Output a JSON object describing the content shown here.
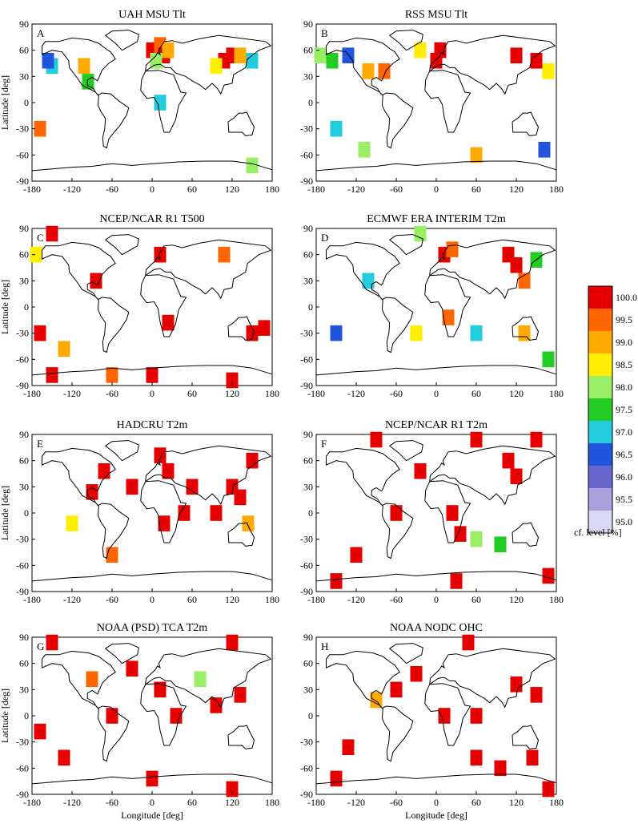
{
  "figure": {
    "ylabel": "Latitude [deg]",
    "xlabel": "Longitude [deg]",
    "x_ticks": [
      "-180",
      "-120",
      "-60",
      "0",
      "60",
      "120",
      "180"
    ],
    "y_ticks": [
      "90",
      "60",
      "30",
      "0",
      "-30",
      "-60",
      "-90"
    ]
  },
  "colorbar": {
    "ticks": [
      "100.0",
      "99.5",
      "99.0",
      "98.5",
      "98.0",
      "97.5",
      "97.0",
      "96.5",
      "96.0",
      "95.5",
      "95.0"
    ],
    "label": "cf. level [%]",
    "colors": [
      "#e60000",
      "#ff6600",
      "#ffaa00",
      "#ffee00",
      "#99ee66",
      "#22cc22",
      "#22ccdd",
      "#2255dd",
      "#6666cc",
      "#aaa0dd",
      "#d8d8f4"
    ]
  },
  "chart_data": [
    {
      "type": "heatmap",
      "panel": "A",
      "title": "UAH MSU Tlt",
      "xlim": [
        -180,
        180
      ],
      "ylim": [
        -90,
        90
      ],
      "value_unit": "%",
      "cells": [
        [
          0,
          60,
          100
        ],
        [
          12,
          66,
          99.5
        ],
        [
          18,
          54,
          100
        ],
        [
          24,
          60,
          99.2
        ],
        [
          6,
          48,
          98
        ],
        [
          -102,
          42,
          99
        ],
        [
          -150,
          42,
          97
        ],
        [
          -156,
          48,
          96.5
        ],
        [
          108,
          48,
          100
        ],
        [
          120,
          54,
          99.8
        ],
        [
          132,
          54,
          99.2
        ],
        [
          150,
          48,
          97
        ],
        [
          96,
          42,
          98.5
        ],
        [
          -96,
          24,
          97.5
        ],
        [
          -168,
          -30,
          99.5
        ],
        [
          12,
          0,
          97
        ],
        [
          150,
          -72,
          98
        ]
      ]
    },
    {
      "type": "heatmap",
      "panel": "B",
      "title": "RSS MSU Tlt",
      "xlim": [
        -180,
        180
      ],
      "ylim": [
        -90,
        90
      ],
      "value_unit": "%",
      "cells": [
        [
          -174,
          54,
          98
        ],
        [
          -156,
          48,
          97.5
        ],
        [
          -132,
          54,
          96.5
        ],
        [
          -102,
          36,
          99
        ],
        [
          -78,
          36,
          99.5
        ],
        [
          0,
          48,
          100
        ],
        [
          6,
          60,
          99.8
        ],
        [
          -24,
          60,
          98.5
        ],
        [
          120,
          54,
          100
        ],
        [
          150,
          48,
          99.8
        ],
        [
          168,
          36,
          98.5
        ],
        [
          -108,
          -54,
          98
        ],
        [
          -150,
          -30,
          97
        ],
        [
          60,
          -60,
          99.2
        ],
        [
          162,
          -54,
          96.5
        ]
      ]
    },
    {
      "type": "heatmap",
      "panel": "C",
      "title": "NCEP/NCAR R1 T500",
      "xlim": [
        -180,
        180
      ],
      "ylim": [
        -90,
        90
      ],
      "value_unit": "%",
      "cells": [
        [
          -150,
          84,
          100
        ],
        [
          -84,
          30,
          100
        ],
        [
          12,
          60,
          99.8
        ],
        [
          -174,
          60,
          98.5
        ],
        [
          108,
          60,
          99.5
        ],
        [
          150,
          -30,
          100
        ],
        [
          168,
          -24,
          100
        ],
        [
          -168,
          -30,
          100
        ],
        [
          24,
          -18,
          100
        ],
        [
          -132,
          -48,
          99
        ],
        [
          -150,
          -78,
          100
        ],
        [
          0,
          -78,
          100
        ],
        [
          120,
          -84,
          100
        ],
        [
          -60,
          -78,
          99.5
        ]
      ]
    },
    {
      "type": "heatmap",
      "panel": "D",
      "title": "ECMWF ERA INTERIM T2m",
      "xlim": [
        -180,
        180
      ],
      "ylim": [
        -90,
        90
      ],
      "value_unit": "%",
      "cells": [
        [
          12,
          60,
          100
        ],
        [
          24,
          66,
          99.5
        ],
        [
          108,
          60,
          100
        ],
        [
          120,
          48,
          100
        ],
        [
          132,
          30,
          99.5
        ],
        [
          150,
          54,
          97.5
        ],
        [
          -24,
          84,
          98
        ],
        [
          -102,
          30,
          97
        ],
        [
          18,
          -12,
          99.5
        ],
        [
          60,
          -30,
          97
        ],
        [
          -150,
          -30,
          96.5
        ],
        [
          132,
          -30,
          99
        ],
        [
          168,
          -60,
          97.5
        ],
        [
          -30,
          -30,
          98.5
        ]
      ]
    },
    {
      "type": "heatmap",
      "panel": "E",
      "title": "HADCRU T2m",
      "xlim": [
        -180,
        180
      ],
      "ylim": [
        -90,
        90
      ],
      "value_unit": "%",
      "cells": [
        [
          12,
          66,
          100
        ],
        [
          24,
          48,
          100
        ],
        [
          -72,
          48,
          100
        ],
        [
          -90,
          24,
          100
        ],
        [
          60,
          30,
          100
        ],
        [
          120,
          30,
          100
        ],
        [
          132,
          18,
          100
        ],
        [
          -30,
          30,
          100
        ],
        [
          96,
          0,
          100
        ],
        [
          48,
          0,
          100
        ],
        [
          -120,
          -12,
          98.5
        ],
        [
          144,
          -12,
          99
        ],
        [
          -60,
          -48,
          99.5
        ],
        [
          18,
          -12,
          100
        ],
        [
          150,
          60,
          100
        ]
      ]
    },
    {
      "type": "heatmap",
      "panel": "F",
      "title": "NCEP/NCAR R1 T2m",
      "xlim": [
        -180,
        180
      ],
      "ylim": [
        -90,
        90
      ],
      "value_unit": "%",
      "cells": [
        [
          -90,
          84,
          100
        ],
        [
          60,
          84,
          100
        ],
        [
          150,
          84,
          100
        ],
        [
          -24,
          48,
          100
        ],
        [
          120,
          42,
          100
        ],
        [
          108,
          60,
          100
        ],
        [
          24,
          0,
          100
        ],
        [
          -60,
          0,
          100
        ],
        [
          36,
          -24,
          100
        ],
        [
          60,
          -30,
          98
        ],
        [
          -150,
          -78,
          100
        ],
        [
          30,
          -78,
          100
        ],
        [
          168,
          -72,
          100
        ],
        [
          -120,
          -48,
          100
        ],
        [
          96,
          -36,
          97.5
        ]
      ]
    },
    {
      "type": "heatmap",
      "panel": "G",
      "title": "NOAA (PSD) TCA T2m",
      "xlim": [
        -180,
        180
      ],
      "ylim": [
        -90,
        90
      ],
      "value_unit": "%",
      "cells": [
        [
          -150,
          84,
          100
        ],
        [
          120,
          84,
          100
        ],
        [
          -30,
          54,
          100
        ],
        [
          12,
          30,
          100
        ],
        [
          36,
          0,
          100
        ],
        [
          96,
          12,
          100
        ],
        [
          132,
          24,
          100
        ],
        [
          -60,
          0,
          100
        ],
        [
          -132,
          -48,
          100
        ],
        [
          -168,
          -18,
          100
        ],
        [
          0,
          -72,
          100
        ],
        [
          120,
          -84,
          100
        ],
        [
          -90,
          42,
          99.5
        ],
        [
          72,
          42,
          98
        ]
      ]
    },
    {
      "type": "heatmap",
      "panel": "H",
      "title": "NOAA NODC OHC",
      "xlim": [
        -180,
        180
      ],
      "ylim": [
        -90,
        90
      ],
      "value_unit": "%",
      "cells": [
        [
          48,
          84,
          100
        ],
        [
          -30,
          48,
          100
        ],
        [
          -60,
          30,
          100
        ],
        [
          12,
          0,
          100
        ],
        [
          60,
          0,
          100
        ],
        [
          120,
          36,
          100
        ],
        [
          150,
          24,
          100
        ],
        [
          -132,
          -36,
          100
        ],
        [
          60,
          -48,
          100
        ],
        [
          144,
          -48,
          100
        ],
        [
          96,
          -60,
          100
        ],
        [
          -150,
          -72,
          100
        ],
        [
          168,
          -84,
          100
        ],
        [
          -90,
          18,
          99
        ]
      ]
    }
  ]
}
